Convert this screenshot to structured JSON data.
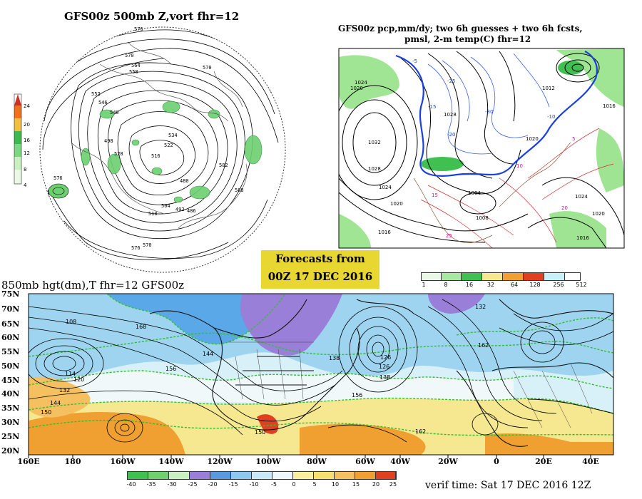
{
  "panel_500mb": {
    "title": "GFS00z  500mb Z,vort    fhr=12",
    "contour_labels": [
      "576",
      "570",
      "564",
      "558",
      "552",
      "546",
      "540",
      "534",
      "528",
      "522",
      "516",
      "510",
      "504",
      "498",
      "492",
      "486",
      "480",
      "576",
      "582",
      "588",
      "570",
      "570",
      "576"
    ],
    "colorbar_ticks": [
      "24",
      "20",
      "16",
      "12",
      "8",
      "4"
    ]
  },
  "panel_precip": {
    "title_line1": "GFS00z pcp,mm/dy; two 6h guesses + two 6h fcsts,",
    "title_line2": "pmsl, 2-m temp(C)  fhr=12",
    "isobar_labels": [
      "1024",
      "1020",
      "1028",
      "1032",
      "1024",
      "1020",
      "1016",
      "1012",
      "1008",
      "1004",
      "1016",
      "1020",
      "1024",
      "1028",
      "1016",
      "1020"
    ],
    "temp_labels": [
      "-30",
      "-25",
      "-20",
      "-15",
      "-10",
      "-5",
      "5",
      "10",
      "15",
      "20",
      "25"
    ],
    "scale_ticks": [
      "1",
      "8",
      "16",
      "32",
      "64",
      "128",
      "256",
      "512"
    ]
  },
  "banner": {
    "line1": "Forecasts from",
    "line2": "00Z 17 DEC 2016"
  },
  "panel_850mb": {
    "title": "850mb hgt(dm),T  fhr=12 GFS00z",
    "lat_labels": [
      "75N",
      "70N",
      "65N",
      "60N",
      "55N",
      "50N",
      "45N",
      "40N",
      "35N",
      "30N",
      "25N",
      "20N"
    ],
    "lon_labels": [
      "160E",
      "180",
      "160W",
      "140W",
      "120W",
      "100W",
      "80W",
      "60W",
      "40W",
      "20W",
      "0",
      "20E",
      "40E"
    ],
    "height_labels": [
      "108",
      "114",
      "120",
      "126",
      "132",
      "138",
      "144",
      "150",
      "156",
      "162",
      "168",
      "126",
      "132",
      "138",
      "144",
      "150",
      "156",
      "162"
    ],
    "temp_scale_ticks": [
      "-40",
      "-35",
      "-30",
      "-25",
      "-20",
      "-15",
      "-10",
      "-5",
      "0",
      "5",
      "10",
      "15",
      "20",
      "25"
    ],
    "verif_time": "verif time: Sat 17 DEC 2016 12Z"
  },
  "colors": {
    "ocean_cold": "#a8d8f0",
    "land_purple": "#9a7fd8",
    "warm_orange": "#f0a030",
    "warm_yellow": "#f5e890",
    "green": "#4cc860",
    "banner": "#e8d631"
  }
}
